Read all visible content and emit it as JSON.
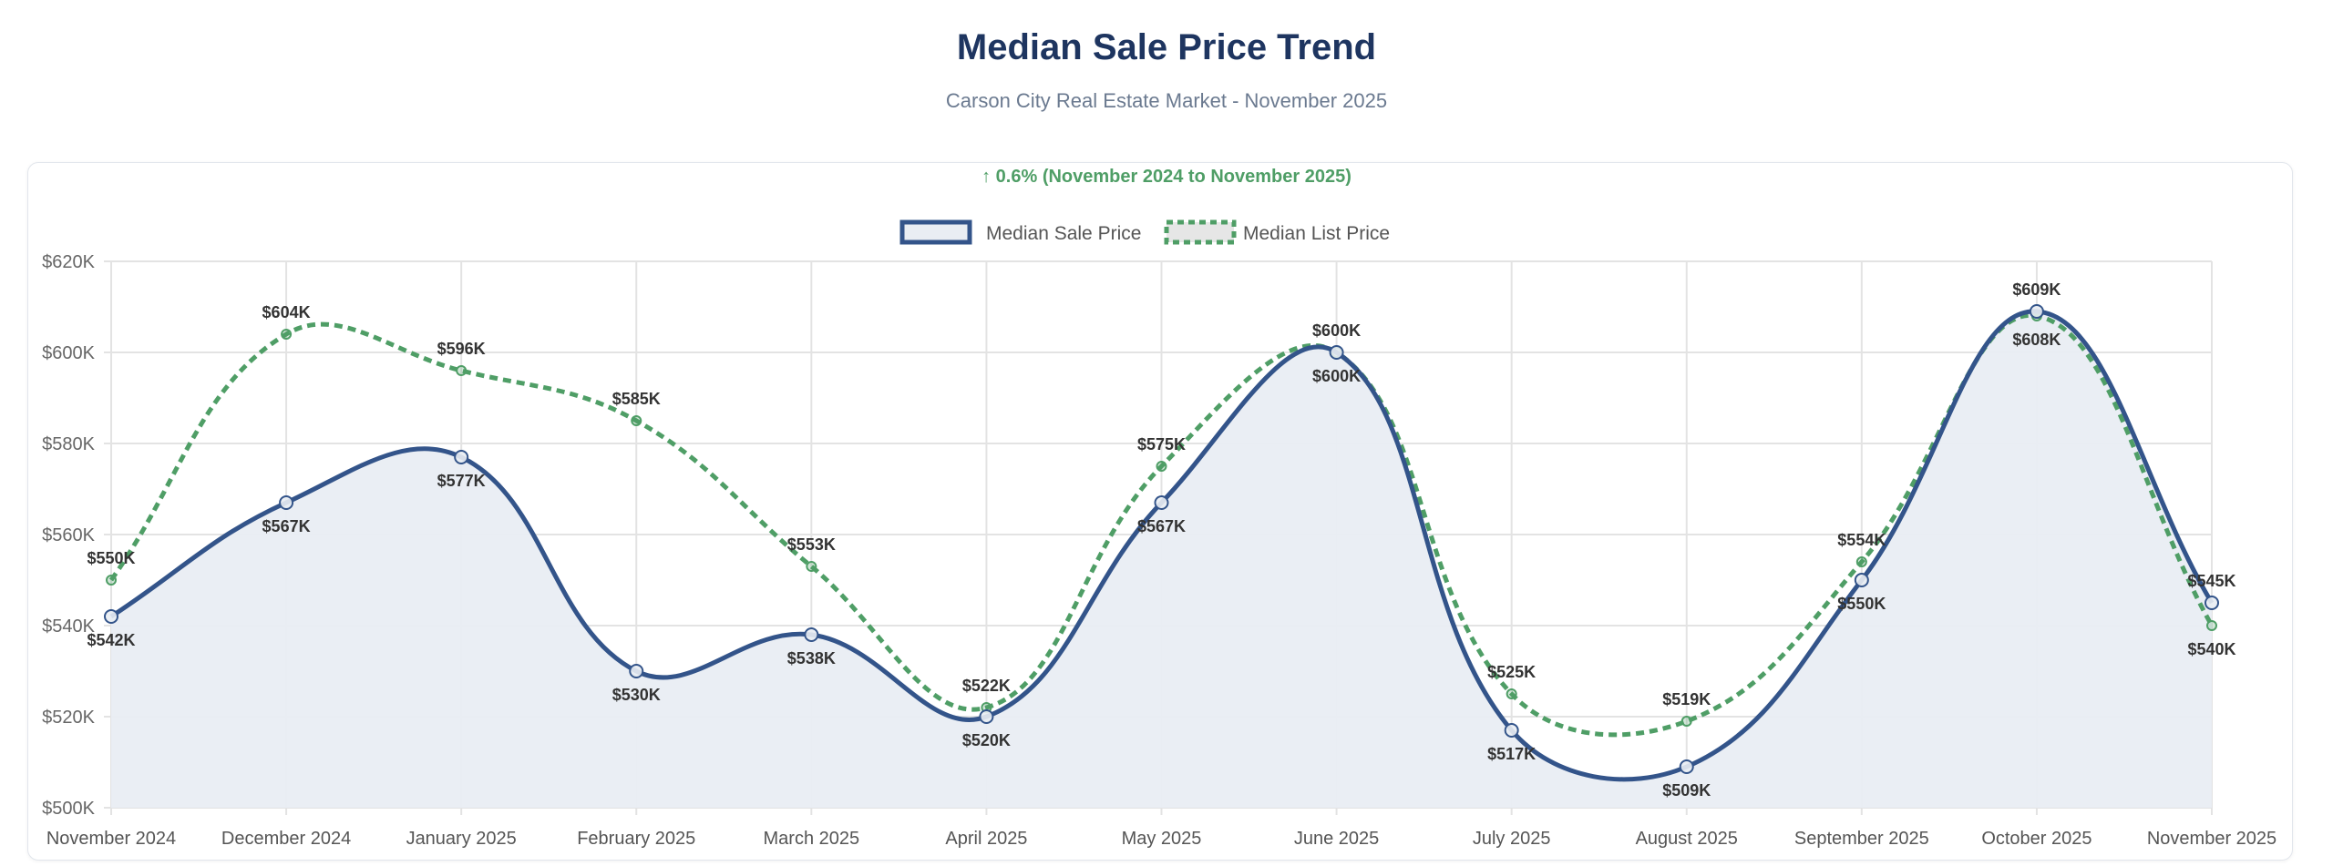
{
  "header": {
    "title": "Median Sale Price Trend",
    "subtitle": "Carson City Real Estate Market - November 2025"
  },
  "chart_data": {
    "type": "line",
    "annotation": "↑ 0.6% (November 2024 to November 2025)",
    "categories": [
      "November 2024",
      "December 2024",
      "January 2025",
      "February 2025",
      "March 2025",
      "April 2025",
      "May 2025",
      "June 2025",
      "July 2025",
      "August 2025",
      "September 2025",
      "October 2025",
      "November 2025"
    ],
    "series": [
      {
        "name": "Median Sale Price",
        "values": [
          542,
          567,
          577,
          530,
          538,
          520,
          567,
          600,
          517,
          509,
          550,
          609,
          545
        ],
        "labels": [
          "$542K",
          "$567K",
          "$577K",
          "$530K",
          "$538K",
          "$520K",
          "$567K",
          "$600K",
          "$517K",
          "$509K",
          "$550K",
          "$609K",
          "$545K"
        ],
        "color": "#33548a",
        "fill": "#e9edf3",
        "style": "solid"
      },
      {
        "name": "Median List Price",
        "values": [
          550,
          604,
          596,
          585,
          553,
          522,
          575,
          600,
          525,
          519,
          554,
          608,
          540
        ],
        "labels": [
          "$550K",
          "$604K",
          "$596K",
          "$585K",
          "$553K",
          "$522K",
          "$575K",
          "$600K",
          "$525K",
          "$519K",
          "$554K",
          "$608K",
          "$540K"
        ],
        "color": "#4f9e66",
        "fill": "#e6e6e6",
        "style": "dashed"
      }
    ],
    "yunit": "thousands USD",
    "ylim": [
      500,
      620
    ],
    "yticks": [
      "$500K",
      "$520K",
      "$540K",
      "$560K",
      "$580K",
      "$600K",
      "$620K"
    ],
    "grid": true,
    "legend": "top-center",
    "annotation_color": "#4f9e66"
  }
}
